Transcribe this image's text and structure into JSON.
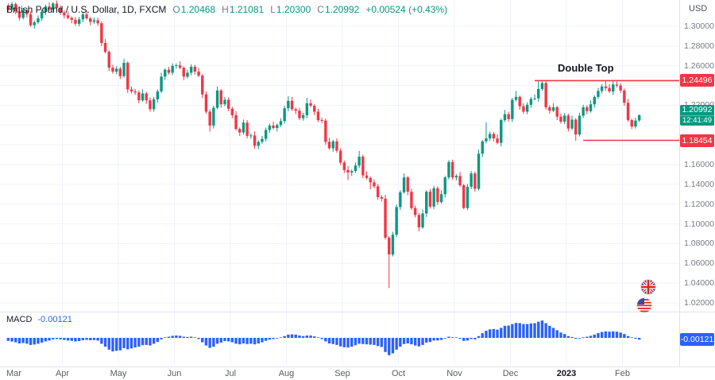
{
  "header": {
    "symbol_title": "British Pound / U.S. Dollar, 1D, FXCM",
    "open_label": "O",
    "open": "1.20468",
    "high_label": "H",
    "high": "1.21081",
    "low_label": "L",
    "low": "1.20300",
    "close_label": "C",
    "close": "1.20992",
    "change": "+0.00524 (+0.43%)",
    "currency": "USD"
  },
  "annotations": {
    "double_top": "Double Top",
    "last_price_label": "1.20992",
    "countdown": "12:41:49"
  },
  "macd_pane": {
    "name": "MACD",
    "value": "-0.00121"
  },
  "colors": {
    "up": "#089981",
    "down": "#F23645",
    "level_line": "#F23645",
    "macd": "#2962FF",
    "grid": "#f0f3fa",
    "axis_text": "#787b86",
    "text": "#131722",
    "axis_border": "#e0e3eb",
    "last_price_bg": "#089981",
    "macd_tag_bg": "#2962FF"
  },
  "chart_data": {
    "type": "candlestick",
    "title": "British Pound / U.S. Dollar, 1D, FXCM",
    "symbol": "GBP/USD",
    "interval": "1D",
    "indicator": "MACD",
    "grid": "on",
    "price_gridline_step": 0.02,
    "visible_price_range": [
      1.02,
      1.3265
    ],
    "price_axis_labels": [
      1.3,
      1.28,
      1.26,
      1.22,
      1.16,
      1.14,
      1.12,
      1.1,
      1.08,
      1.06,
      1.04,
      1.02
    ],
    "time_axis_labels": [
      [
        "Mar",
        0
      ],
      [
        "Apr",
        15
      ],
      [
        "May",
        30
      ],
      [
        "Jun",
        45
      ],
      [
        "Jul",
        60
      ],
      [
        "Aug",
        75
      ],
      [
        "Sep",
        90
      ],
      [
        "Oct",
        105
      ],
      [
        "Nov",
        120
      ],
      [
        "Dec",
        135
      ],
      [
        "2023",
        150
      ],
      [
        "Feb",
        165
      ]
    ],
    "levels": [
      {
        "price": 1.24496,
        "label": "1.24496",
        "from_index": 141
      },
      {
        "price": 1.18454,
        "label": "1.18454",
        "from_index": 154
      }
    ],
    "double_top_annotation": "Double Top",
    "last_ohlc": {
      "open": 1.20468,
      "high": 1.21081,
      "low": 1.203,
      "close": 1.20992
    },
    "last_close": 1.20992,
    "macd_last": -0.00121,
    "candles": [
      [
        1.321,
        1.323,
        1.315,
        1.317
      ],
      [
        1.317,
        1.3245,
        1.3155,
        1.3225
      ],
      [
        1.3225,
        1.324,
        1.312,
        1.315
      ],
      [
        1.315,
        1.318,
        1.306,
        1.3085
      ],
      [
        1.3085,
        1.3185,
        1.307,
        1.316
      ],
      [
        1.316,
        1.318,
        1.309,
        1.312
      ],
      [
        1.312,
        1.315,
        1.2995,
        1.301
      ],
      [
        1.301,
        1.3055,
        1.2975,
        1.304
      ],
      [
        1.304,
        1.311,
        1.302,
        1.308
      ],
      [
        1.308,
        1.317,
        1.3055,
        1.3145
      ],
      [
        1.3145,
        1.322,
        1.3115,
        1.32
      ],
      [
        1.32,
        1.324,
        1.3155,
        1.317
      ],
      [
        1.317,
        1.3245,
        1.3135,
        1.323
      ],
      [
        1.323,
        1.326,
        1.3165,
        1.3185
      ],
      [
        1.3185,
        1.321,
        1.3115,
        1.314
      ],
      [
        1.314,
        1.316,
        1.308,
        1.311
      ],
      [
        1.311,
        1.315,
        1.307,
        1.3085
      ],
      [
        1.3085,
        1.31,
        1.303,
        1.3065
      ],
      [
        1.3065,
        1.3095,
        1.3005,
        1.3025
      ],
      [
        1.3025,
        1.3095,
        1.3,
        1.307
      ],
      [
        1.307,
        1.314,
        1.304,
        1.312
      ],
      [
        1.312,
        1.316,
        1.3065,
        1.308
      ],
      [
        1.308,
        1.3095,
        1.301,
        1.3045
      ],
      [
        1.3045,
        1.309,
        1.3025,
        1.306
      ],
      [
        1.306,
        1.3085,
        1.3005,
        1.303
      ],
      [
        1.303,
        1.305,
        1.28,
        1.283
      ],
      [
        1.283,
        1.287,
        1.2725,
        1.274
      ],
      [
        1.274,
        1.2755,
        1.2545,
        1.258
      ],
      [
        1.258,
        1.261,
        1.252,
        1.254
      ],
      [
        1.254,
        1.2595,
        1.2515,
        1.257
      ],
      [
        1.257,
        1.259,
        1.2465,
        1.2495
      ],
      [
        1.2495,
        1.267,
        1.248,
        1.263
      ],
      [
        1.263,
        1.2645,
        1.2325,
        1.236
      ],
      [
        1.236,
        1.239,
        1.232,
        1.234
      ],
      [
        1.234,
        1.2365,
        1.2305,
        1.233
      ],
      [
        1.233,
        1.235,
        1.222,
        1.225
      ],
      [
        1.225,
        1.236,
        1.2235,
        1.232
      ],
      [
        1.232,
        1.2335,
        1.2215,
        1.225
      ],
      [
        1.225,
        1.228,
        1.2135,
        1.216
      ],
      [
        1.216,
        1.2285,
        1.2135,
        1.226
      ],
      [
        1.226,
        1.236,
        1.223,
        1.234
      ],
      [
        1.234,
        1.253,
        1.2325,
        1.249
      ],
      [
        1.249,
        1.2575,
        1.2455,
        1.256
      ],
      [
        1.256,
        1.259,
        1.251,
        1.253
      ],
      [
        1.253,
        1.2625,
        1.2505,
        1.26
      ],
      [
        1.26,
        1.2625,
        1.257,
        1.2605
      ],
      [
        1.2605,
        1.2645,
        1.2565,
        1.258
      ],
      [
        1.258,
        1.2595,
        1.2455,
        1.249
      ],
      [
        1.249,
        1.256,
        1.247,
        1.253
      ],
      [
        1.253,
        1.2615,
        1.2505,
        1.259
      ],
      [
        1.259,
        1.261,
        1.251,
        1.254
      ],
      [
        1.254,
        1.258,
        1.2485,
        1.25
      ],
      [
        1.25,
        1.2515,
        1.2275,
        1.231
      ],
      [
        1.231,
        1.234,
        1.2115,
        1.2135
      ],
      [
        1.2135,
        1.216,
        1.1934,
        1.1995
      ],
      [
        1.1995,
        1.2195,
        1.1965,
        1.2175
      ],
      [
        1.2175,
        1.239,
        1.216,
        1.235
      ],
      [
        1.235,
        1.2365,
        1.2175,
        1.221
      ],
      [
        1.221,
        1.2285,
        1.219,
        1.2255
      ],
      [
        1.2255,
        1.228,
        1.214,
        1.2165
      ],
      [
        1.2165,
        1.2185,
        1.207,
        1.21
      ],
      [
        1.21,
        1.214,
        1.1945,
        1.196
      ],
      [
        1.196,
        1.1975,
        1.189,
        1.1925
      ],
      [
        1.1925,
        1.2055,
        1.1905,
        1.2025
      ],
      [
        1.2025,
        1.205,
        1.1865,
        1.189
      ],
      [
        1.189,
        1.1915,
        1.186,
        1.1895
      ],
      [
        1.1895,
        1.1935,
        1.176,
        1.179
      ],
      [
        1.179,
        1.1845,
        1.1755,
        1.183
      ],
      [
        1.183,
        1.189,
        1.181,
        1.186
      ],
      [
        1.186,
        1.1975,
        1.1835,
        1.195
      ],
      [
        1.195,
        1.2015,
        1.192,
        1.1995
      ],
      [
        1.1995,
        1.2035,
        1.1955,
        1.197
      ],
      [
        1.197,
        1.2015,
        1.1935,
        1.2
      ],
      [
        1.2,
        1.207,
        1.198,
        1.204
      ],
      [
        1.204,
        1.2195,
        1.2015,
        1.217
      ],
      [
        1.217,
        1.2293,
        1.214,
        1.2245
      ],
      [
        1.2245,
        1.2285,
        1.2145,
        1.216
      ],
      [
        1.216,
        1.2175,
        1.211,
        1.2145
      ],
      [
        1.2145,
        1.2175,
        1.205,
        1.207
      ],
      [
        1.207,
        1.2125,
        1.2045,
        1.21
      ],
      [
        1.21,
        1.2276,
        1.207,
        1.222
      ],
      [
        1.222,
        1.226,
        1.218,
        1.2195
      ],
      [
        1.2195,
        1.221,
        1.21,
        1.2135
      ],
      [
        1.2135,
        1.2165,
        1.203,
        1.205
      ],
      [
        1.205,
        1.2075,
        1.202,
        1.2045
      ],
      [
        1.2045,
        1.2065,
        1.18,
        1.183
      ],
      [
        1.183,
        1.187,
        1.175,
        1.1765
      ],
      [
        1.1765,
        1.185,
        1.173,
        1.1835
      ],
      [
        1.1835,
        1.1865,
        1.172,
        1.174
      ],
      [
        1.174,
        1.1765,
        1.1595,
        1.162
      ],
      [
        1.162,
        1.164,
        1.1515,
        1.1545
      ],
      [
        1.1545,
        1.1585,
        1.1444,
        1.152
      ],
      [
        1.152,
        1.155,
        1.1485,
        1.1535
      ],
      [
        1.1535,
        1.162,
        1.1515,
        1.159
      ],
      [
        1.159,
        1.1738,
        1.1565,
        1.168
      ],
      [
        1.168,
        1.17,
        1.146,
        1.149
      ],
      [
        1.149,
        1.153,
        1.145,
        1.1465
      ],
      [
        1.1465,
        1.148,
        1.135,
        1.142
      ],
      [
        1.142,
        1.145,
        1.136,
        1.138
      ],
      [
        1.138,
        1.1405,
        1.1245,
        1.127
      ],
      [
        1.127,
        1.129,
        1.1225,
        1.1255
      ],
      [
        1.1255,
        1.1295,
        1.084,
        1.086
      ],
      [
        1.086,
        1.0875,
        1.035,
        1.069
      ],
      [
        1.069,
        1.092,
        1.067,
        1.089
      ],
      [
        1.089,
        1.1195,
        1.0865,
        1.117
      ],
      [
        1.117,
        1.134,
        1.114,
        1.132
      ],
      [
        1.132,
        1.151,
        1.1305,
        1.147
      ],
      [
        1.147,
        1.1485,
        1.129,
        1.1325
      ],
      [
        1.1325,
        1.1355,
        1.114,
        1.116
      ],
      [
        1.116,
        1.1185,
        1.1065,
        1.109
      ],
      [
        1.109,
        1.111,
        1.0924,
        1.0965
      ],
      [
        1.0965,
        1.1145,
        1.095,
        1.1105
      ],
      [
        1.1105,
        1.134,
        1.107,
        1.1325
      ],
      [
        1.1325,
        1.1355,
        1.1155,
        1.1175
      ],
      [
        1.1175,
        1.1385,
        1.115,
        1.136
      ],
      [
        1.136,
        1.138,
        1.119,
        1.122
      ],
      [
        1.122,
        1.134,
        1.1205,
        1.13
      ],
      [
        1.13,
        1.1485,
        1.1265,
        1.147
      ],
      [
        1.147,
        1.1645,
        1.145,
        1.1625
      ],
      [
        1.1625,
        1.165,
        1.1445,
        1.147
      ],
      [
        1.147,
        1.1505,
        1.144,
        1.1485
      ],
      [
        1.1485,
        1.1525,
        1.1375,
        1.139
      ],
      [
        1.139,
        1.1405,
        1.1147,
        1.116
      ],
      [
        1.116,
        1.1405,
        1.114,
        1.1375
      ],
      [
        1.1375,
        1.1535,
        1.135,
        1.151
      ],
      [
        1.151,
        1.153,
        1.1325,
        1.1355
      ],
      [
        1.1355,
        1.175,
        1.134,
        1.171
      ],
      [
        1.171,
        1.185,
        1.1675,
        1.1835
      ],
      [
        1.1835,
        1.2028,
        1.1815,
        1.1865
      ],
      [
        1.1865,
        1.1935,
        1.184,
        1.191
      ],
      [
        1.191,
        1.193,
        1.1835,
        1.1865
      ],
      [
        1.1865,
        1.1905,
        1.1805,
        1.182
      ],
      [
        1.182,
        1.2065,
        1.1785,
        1.205
      ],
      [
        1.205,
        1.2153,
        1.203,
        1.211
      ],
      [
        1.211,
        1.2135,
        1.2035,
        1.206
      ],
      [
        1.206,
        1.2275,
        1.203,
        1.2255
      ],
      [
        1.2255,
        1.2345,
        1.224,
        1.2285
      ],
      [
        1.2285,
        1.23,
        1.2155,
        1.219
      ],
      [
        1.219,
        1.222,
        1.2115,
        1.2135
      ],
      [
        1.2135,
        1.223,
        1.211,
        1.2205
      ],
      [
        1.2205,
        1.2285,
        1.2175,
        1.2265
      ],
      [
        1.2265,
        1.231,
        1.225,
        1.227
      ],
      [
        1.227,
        1.2446,
        1.2235,
        1.2365
      ],
      [
        1.2365,
        1.245,
        1.2345,
        1.2425
      ],
      [
        1.2425,
        1.245,
        1.2155,
        1.218
      ],
      [
        1.218,
        1.22,
        1.2115,
        1.2145
      ],
      [
        1.2145,
        1.222,
        1.213,
        1.218
      ],
      [
        1.218,
        1.2195,
        1.205,
        1.2085
      ],
      [
        1.2085,
        1.2115,
        1.2015,
        1.2035
      ],
      [
        1.2035,
        1.212,
        1.201,
        1.2095
      ],
      [
        1.2095,
        1.2115,
        1.1935,
        1.1965
      ],
      [
        1.1965,
        1.2095,
        1.195,
        1.2055
      ],
      [
        1.2055,
        1.207,
        1.1841,
        1.1905
      ],
      [
        1.1905,
        1.2125,
        1.1885,
        1.2095
      ],
      [
        1.2095,
        1.2205,
        1.207,
        1.218
      ],
      [
        1.218,
        1.22,
        1.211,
        1.214
      ],
      [
        1.214,
        1.225,
        1.2125,
        1.221
      ],
      [
        1.221,
        1.23,
        1.2175,
        1.2285
      ],
      [
        1.2285,
        1.2375,
        1.2265,
        1.2345
      ],
      [
        1.2345,
        1.2415,
        1.232,
        1.239
      ],
      [
        1.239,
        1.2448,
        1.2345,
        1.2375
      ],
      [
        1.2375,
        1.2415,
        1.2325,
        1.234
      ],
      [
        1.234,
        1.2447,
        1.2305,
        1.241
      ],
      [
        1.241,
        1.244,
        1.238,
        1.24
      ],
      [
        1.24,
        1.2425,
        1.2325,
        1.235
      ],
      [
        1.235,
        1.237,
        1.2195,
        1.2225
      ],
      [
        1.2225,
        1.2265,
        1.2035,
        1.205
      ],
      [
        1.205,
        1.2065,
        1.196,
        1.1985
      ],
      [
        1.1985,
        1.2075,
        1.1965,
        1.2045
      ],
      [
        1.20468,
        1.21081,
        1.203,
        1.20992
      ]
    ],
    "macd_histogram": [
      -0.002,
      -0.0025,
      -0.003,
      -0.0038,
      -0.0035,
      -0.004,
      -0.0048,
      -0.0045,
      -0.004,
      -0.0032,
      -0.0024,
      -0.0018,
      -0.001,
      -0.0008,
      -0.001,
      -0.0014,
      -0.0018,
      -0.002,
      -0.0024,
      -0.0022,
      -0.0016,
      -0.0014,
      -0.0016,
      -0.0015,
      -0.0018,
      -0.004,
      -0.006,
      -0.008,
      -0.0092,
      -0.0088,
      -0.0085,
      -0.007,
      -0.0078,
      -0.0072,
      -0.0065,
      -0.006,
      -0.005,
      -0.0048,
      -0.0052,
      -0.004,
      -0.0028,
      -0.001,
      0.0004,
      0.0008,
      0.0014,
      0.0016,
      0.0014,
      0.0008,
      0.0006,
      0.0008,
      0.0002,
      -0.0008,
      -0.003,
      -0.0052,
      -0.0068,
      -0.006,
      -0.004,
      -0.0032,
      -0.0022,
      -0.0024,
      -0.003,
      -0.004,
      -0.0044,
      -0.0038,
      -0.0042,
      -0.004,
      -0.0044,
      -0.0038,
      -0.003,
      -0.002,
      -0.0012,
      -0.0008,
      -0.0004,
      0.0002,
      0.0012,
      0.0022,
      0.0024,
      0.0022,
      0.0016,
      0.0012,
      0.0016,
      0.0016,
      0.001,
      0.0,
      -0.0008,
      -0.0024,
      -0.0038,
      -0.0042,
      -0.0048,
      -0.0058,
      -0.0064,
      -0.0066,
      -0.006,
      -0.005,
      -0.004,
      -0.0042,
      -0.0044,
      -0.0046,
      -0.0048,
      -0.0056,
      -0.0062,
      -0.0096,
      -0.0118,
      -0.0105,
      -0.008,
      -0.006,
      -0.0042,
      -0.0038,
      -0.0044,
      -0.0052,
      -0.0058,
      -0.0048,
      -0.0032,
      -0.0028,
      -0.0018,
      -0.0018,
      -0.0014,
      -0.0004,
      0.0008,
      0.0004,
      0.0,
      -0.0006,
      -0.002,
      -0.0018,
      -0.0008,
      -0.001,
      0.0012,
      0.0032,
      0.0048,
      0.0058,
      0.006,
      0.0056,
      0.0068,
      0.0082,
      0.0084,
      0.0094,
      0.0102,
      0.01,
      0.0094,
      0.0094,
      0.0098,
      0.01,
      0.011,
      0.0118,
      0.01,
      0.0082,
      0.0068,
      0.0052,
      0.0036,
      0.0026,
      0.0012,
      0.0006,
      -0.0006,
      -0.0004,
      0.0004,
      0.0008,
      0.0014,
      0.0022,
      0.0032,
      0.004,
      0.0044,
      0.0042,
      0.0044,
      0.0042,
      0.0036,
      0.0026,
      0.0012,
      0.0,
      -0.0006,
      -0.00121
    ]
  }
}
